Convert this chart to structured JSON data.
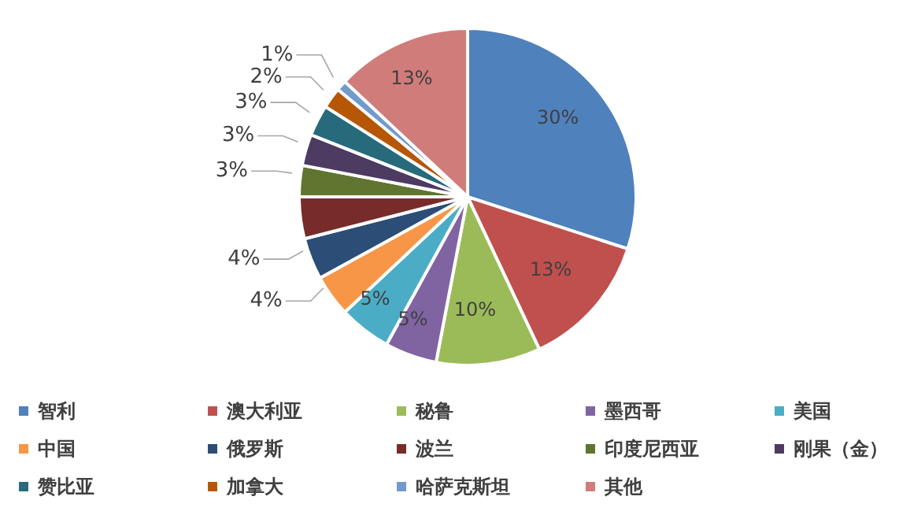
{
  "chart_data": {
    "type": "pie",
    "categories": [
      "智利",
      "澳大利亚",
      "秘鲁",
      "墨西哥",
      "美国",
      "中国",
      "俄罗斯",
      "波兰",
      "印度尼西亚",
      "刚果（金）",
      "赞比亚",
      "加拿大",
      "哈萨克斯坦",
      "其他"
    ],
    "values": [
      30,
      13,
      10,
      5,
      5,
      4,
      4,
      4,
      3,
      3,
      3,
      2,
      1,
      13
    ],
    "value_labels": [
      "30%",
      "13%",
      "10%",
      "5%",
      "5%",
      "4%",
      "4%",
      null,
      "3%",
      "3%",
      "3%",
      "2%",
      "1%",
      "13%"
    ],
    "colors": [
      "#4f81bd",
      "#c0504d",
      "#9bbb59",
      "#8064a2",
      "#4bacc6",
      "#f79646",
      "#2c4d75",
      "#772c2a",
      "#5f7530",
      "#4d3b62",
      "#276a7c",
      "#b65708",
      "#729aca",
      "#d07c7a"
    ],
    "legend": "bottom"
  }
}
